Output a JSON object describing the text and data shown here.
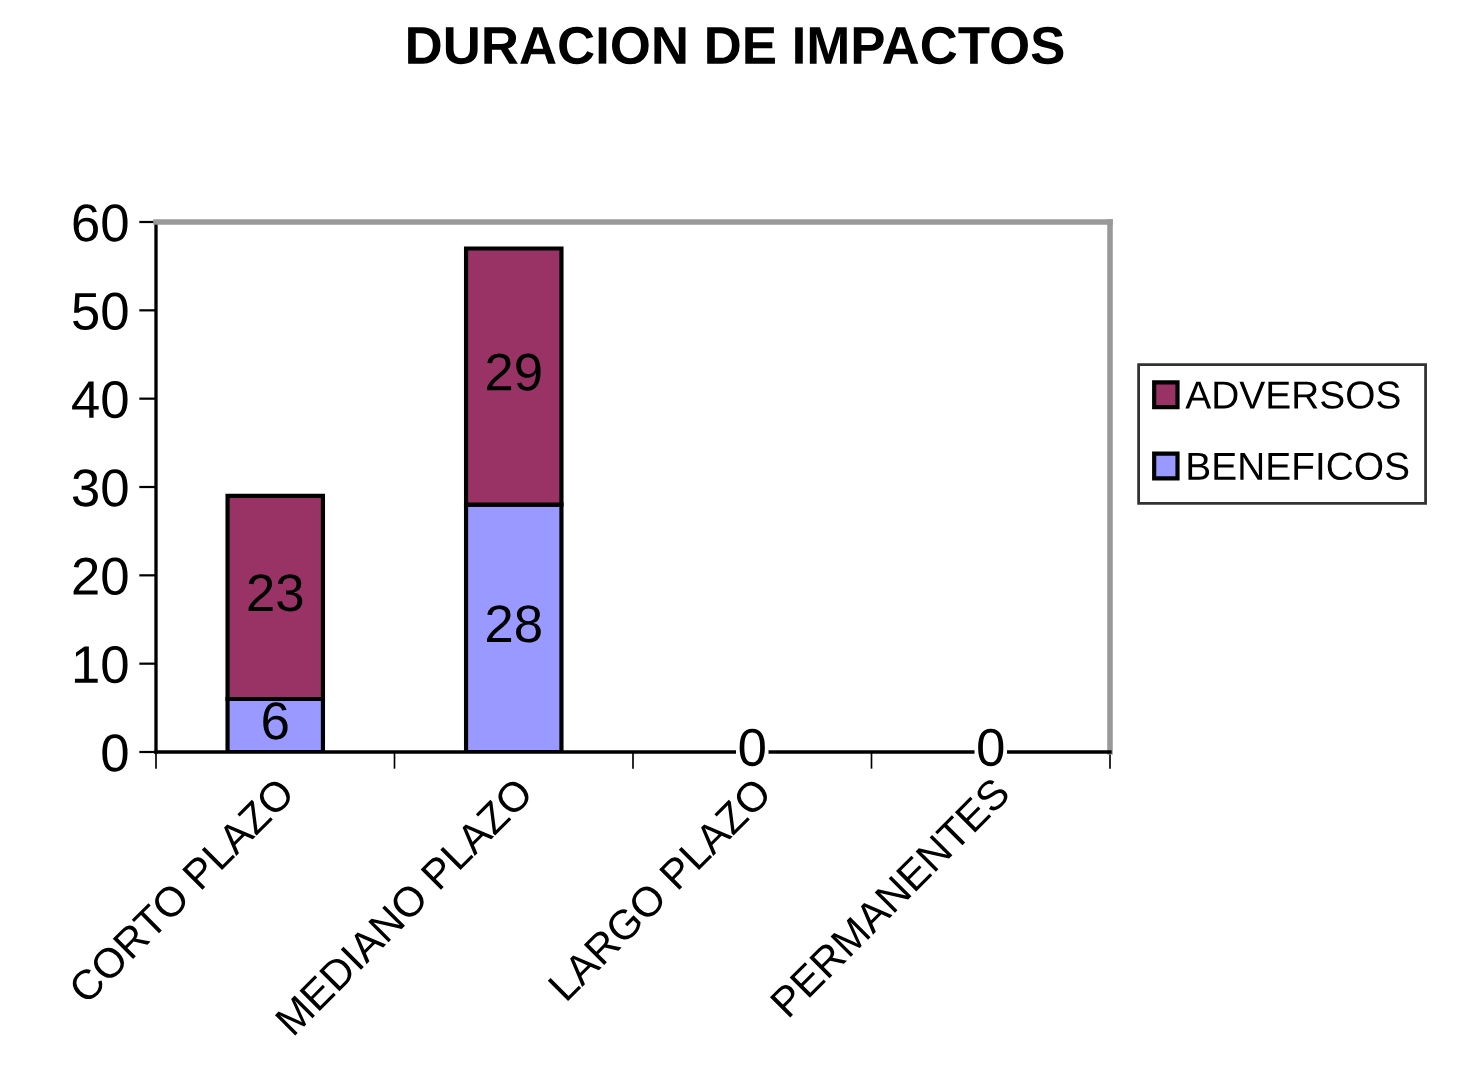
{
  "chart_data": {
    "type": "bar",
    "title": "DURACION DE IMPACTOS",
    "categories": [
      "CORTO PLAZO",
      "MEDIANO PLAZO",
      "LARGO PLAZO",
      "PERMANENTES"
    ],
    "stacked": true,
    "series": [
      {
        "name": "BENEFICOS",
        "color": "#9999ff",
        "values": [
          6,
          28,
          0,
          0
        ],
        "value_labels": [
          "6",
          "28",
          "0",
          "0"
        ]
      },
      {
        "name": "ADVERSOS",
        "color": "#993366",
        "values": [
          23,
          29,
          0,
          0
        ],
        "value_labels": [
          "23",
          "29",
          null,
          null
        ]
      }
    ],
    "ylim": [
      0,
      60
    ],
    "yticks": [
      0,
      10,
      20,
      30,
      40,
      50,
      60
    ],
    "grid": false,
    "legend": "right"
  }
}
